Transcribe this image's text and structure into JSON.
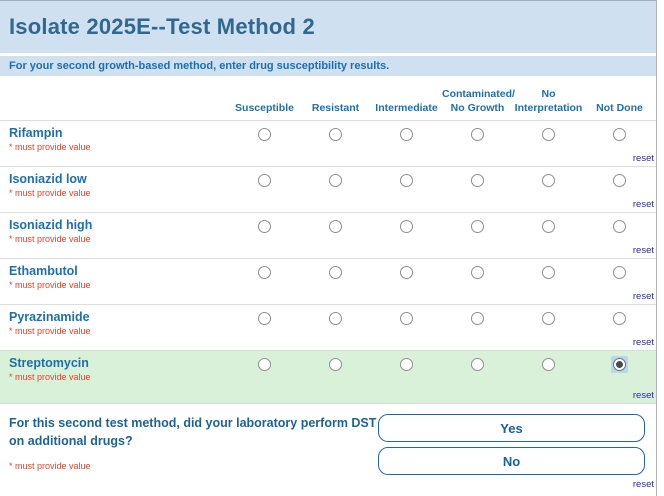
{
  "header": {
    "title": "Isolate 2025E--Test Method 2",
    "subtitle": "For your second growth-based method, enter drug susceptibility results."
  },
  "table": {
    "columns": [
      "Susceptible",
      "Resistant",
      "Intermediate",
      "Contaminated/\nNo Growth",
      "No\nInterpretation",
      "Not Done"
    ],
    "required_note": "* must provide value",
    "reset_label": "reset",
    "rows": [
      {
        "label": "Rifampin",
        "selected": null,
        "highlighted": false
      },
      {
        "label": "Isoniazid low",
        "selected": null,
        "highlighted": false
      },
      {
        "label": "Isoniazid high",
        "selected": null,
        "highlighted": false
      },
      {
        "label": "Ethambutol",
        "selected": null,
        "highlighted": false
      },
      {
        "label": "Pyrazinamide",
        "selected": null,
        "highlighted": false
      },
      {
        "label": "Streptomycin",
        "selected": "Not Done",
        "highlighted": true
      }
    ]
  },
  "question": {
    "text": "For this second test method, did your laboratory perform DST on additional drugs?",
    "required_note": "* must provide value",
    "options": [
      "Yes",
      "No"
    ],
    "reset_label": "reset"
  },
  "colors": {
    "header_bg": "#cfe0f1",
    "title_blue": "#31688f",
    "accent_blue": "#1d6fae",
    "required_red": "#e0442c",
    "highlight_green": "#d9f0d9",
    "selected_radio_bg": "#b5d8ee",
    "button_border_blue": "#2465a5",
    "reset_link_blue": "#2b2ba6"
  }
}
